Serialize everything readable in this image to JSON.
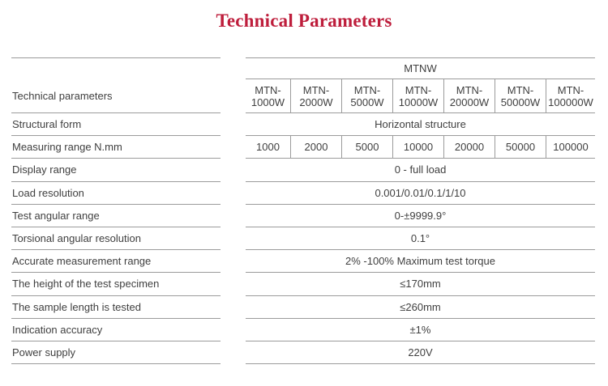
{
  "title": "Technical Parameters",
  "table": {
    "corner_label": "Technical parameters",
    "group_header": "MTNW",
    "models": [
      "MTN-1000W",
      "MTN-2000W",
      "MTN-5000W",
      "MTN-10000W",
      "MTN-20000W",
      "MTN-50000W",
      "MTN-100000W"
    ],
    "rows": [
      {
        "label": "Structural form",
        "value": "Horizontal structure"
      },
      {
        "label": "Measuring range N.mm",
        "values": [
          "1000",
          "2000",
          "5000",
          "10000",
          "20000",
          "50000",
          "100000"
        ]
      },
      {
        "label": "Display range",
        "value": "0 - full load"
      },
      {
        "label": "Load resolution",
        "value": "0.001/0.01/0.1/1/10"
      },
      {
        "label": "Test angular range",
        "value": "0-±9999.9°"
      },
      {
        "label": "Torsional angular resolution",
        "value": "0.1°"
      },
      {
        "label": "Accurate measurement range",
        "value": "2% -100% Maximum test torque"
      },
      {
        "label": "The height of the test specimen",
        "value": "≤170mm"
      },
      {
        "label": "The sample length is tested",
        "value": "≤260mm"
      },
      {
        "label": "Indication accuracy",
        "value": "±1%"
      },
      {
        "label": "Power supply",
        "value": "220V"
      }
    ]
  },
  "colors": {
    "accent": "#be1e3c",
    "line": "#9b9b9b",
    "text": "#3f3f3f"
  }
}
